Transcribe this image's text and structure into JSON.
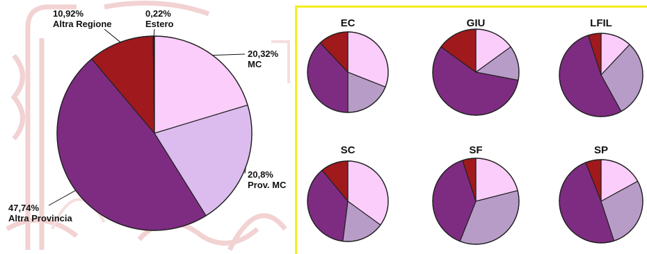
{
  "colors": {
    "panel_border": "#f4ee1a",
    "watermark": "#f2d2d2",
    "slice_stroke": "#222222"
  },
  "chart_data": [
    {
      "type": "pie",
      "slices": [
        {
          "label": "MC",
          "value": 20.32,
          "value_text": "20,32%",
          "color": "#fbcdfb"
        },
        {
          "label": "Prov. MC",
          "value": 20.8,
          "value_text": "20,8%",
          "color": "#dcbcee"
        },
        {
          "label": "Altra Provincia",
          "value": 47.74,
          "value_text": "47,74%",
          "color": "#7e2c82"
        },
        {
          "label": "Altra Regione",
          "value": 10.92,
          "value_text": "10,92%",
          "color": "#a0191c"
        },
        {
          "label": "Estero",
          "value": 0.22,
          "value_text": "0,22%",
          "color": "#1a1a1a"
        }
      ]
    },
    {
      "type": "pie",
      "title": "EC",
      "slices": [
        {
          "value": 31,
          "color": "#fbcdfb"
        },
        {
          "value": 19,
          "color": "#b89cc8"
        },
        {
          "value": 38,
          "color": "#7e2c82"
        },
        {
          "value": 12,
          "color": "#a0191c"
        }
      ]
    },
    {
      "type": "pie",
      "title": "GIU",
      "slices": [
        {
          "value": 15,
          "color": "#fbcdfb"
        },
        {
          "value": 13,
          "color": "#b89cc8"
        },
        {
          "value": 57,
          "color": "#7e2c82"
        },
        {
          "value": 15,
          "color": "#a0191c"
        }
      ]
    },
    {
      "type": "pie",
      "title": "LFIL",
      "slices": [
        {
          "value": 12,
          "color": "#fbcdfb"
        },
        {
          "value": 30,
          "color": "#b89cc8"
        },
        {
          "value": 53,
          "color": "#7e2c82"
        },
        {
          "value": 5,
          "color": "#a0191c"
        }
      ]
    },
    {
      "type": "pie",
      "title": "SC",
      "slices": [
        {
          "value": 35,
          "color": "#fbcdfb"
        },
        {
          "value": 17,
          "color": "#b89cc8"
        },
        {
          "value": 37,
          "color": "#7e2c82"
        },
        {
          "value": 11,
          "color": "#a0191c"
        }
      ]
    },
    {
      "type": "pie",
      "title": "SF",
      "slices": [
        {
          "value": 21,
          "color": "#fbcdfb"
        },
        {
          "value": 35,
          "color": "#b89cc8"
        },
        {
          "value": 39,
          "color": "#7e2c82"
        },
        {
          "value": 5,
          "color": "#a0191c"
        }
      ]
    },
    {
      "type": "pie",
      "title": "SP",
      "slices": [
        {
          "value": 17,
          "color": "#fbcdfb"
        },
        {
          "value": 28,
          "color": "#b89cc8"
        },
        {
          "value": 49,
          "color": "#7e2c82"
        },
        {
          "value": 6,
          "color": "#a0191c"
        }
      ]
    }
  ]
}
